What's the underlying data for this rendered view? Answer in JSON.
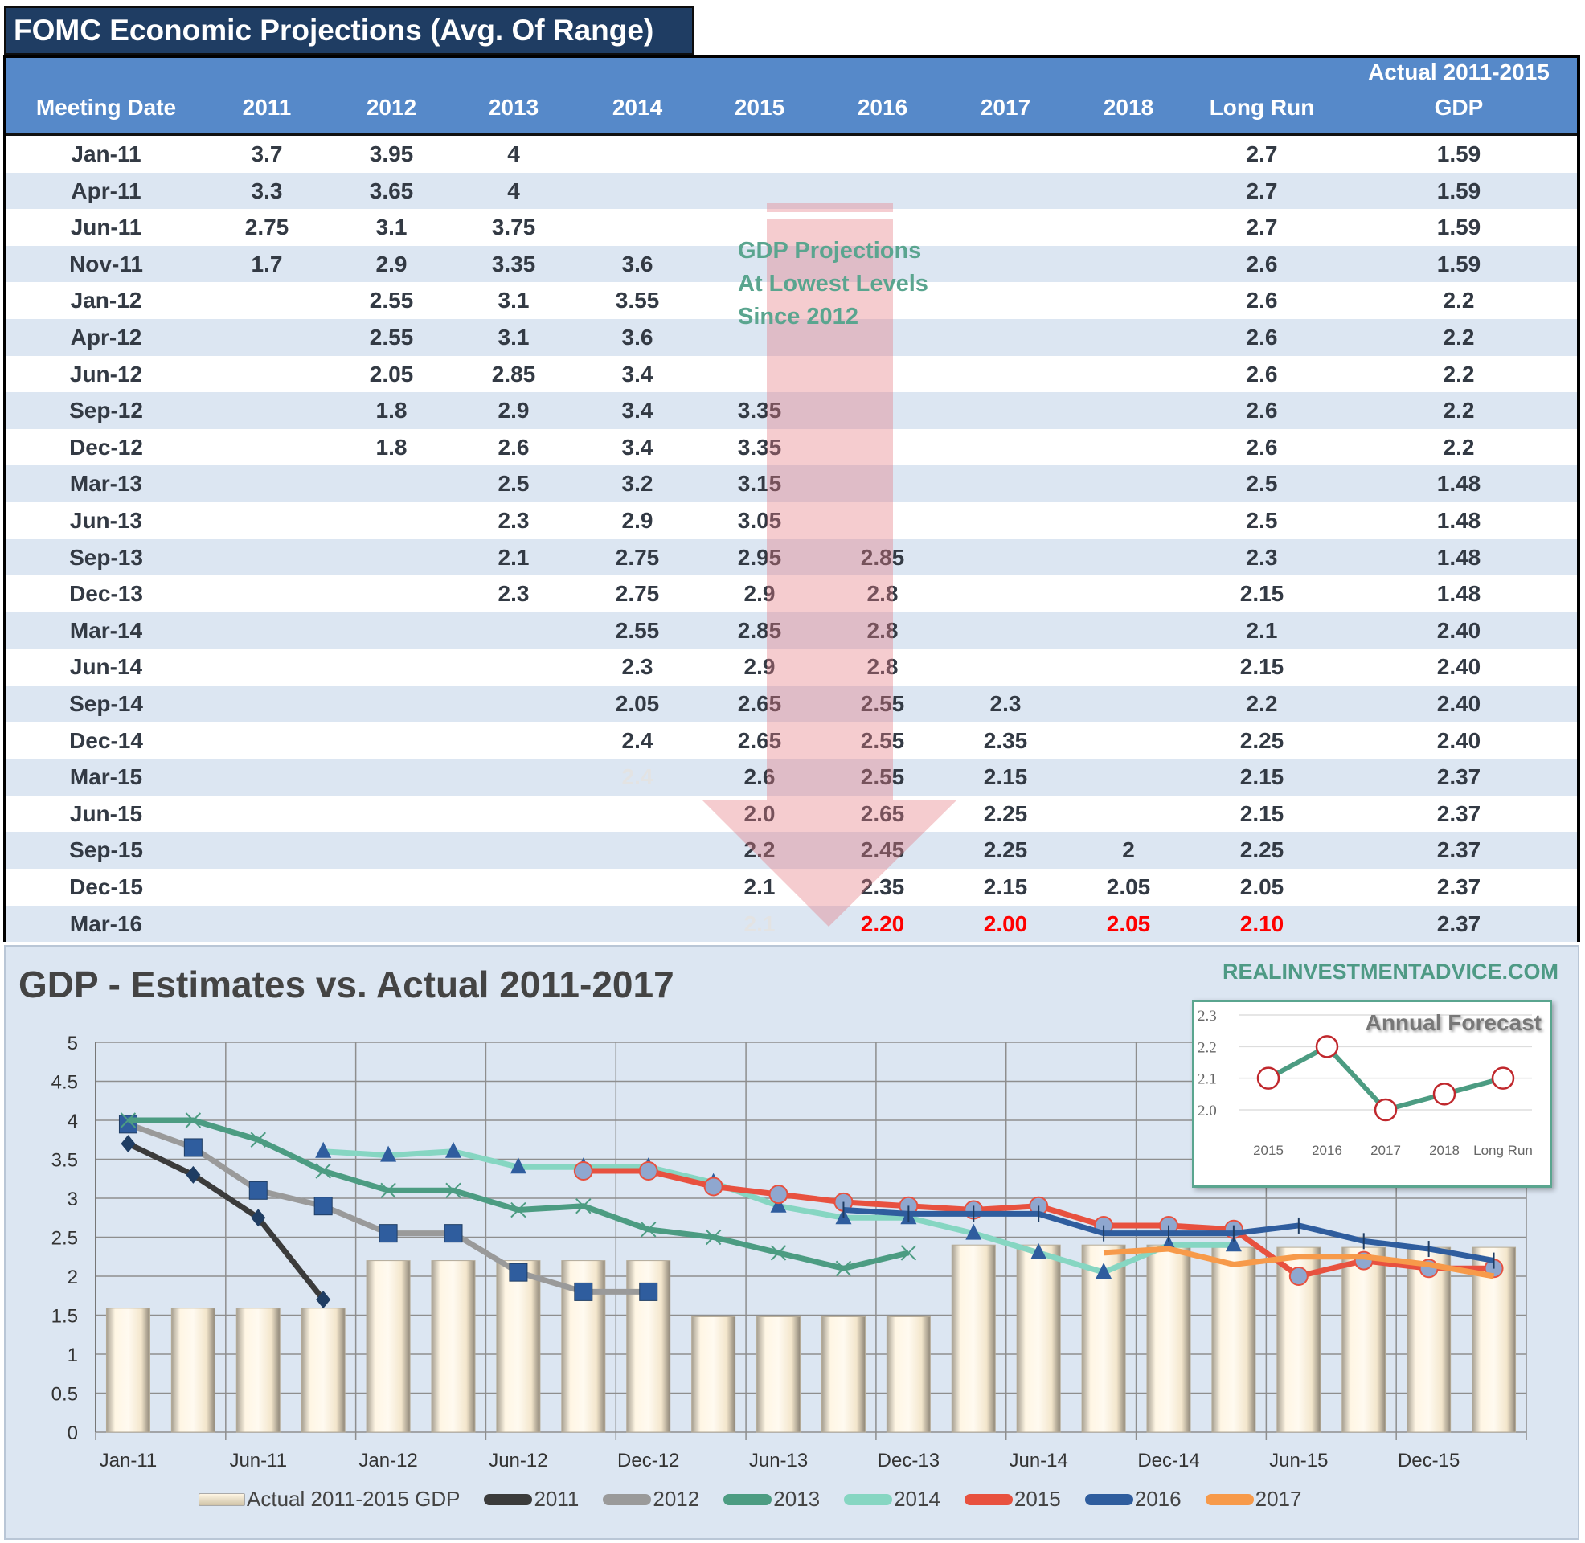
{
  "title": "FOMC Economic Projections (Avg. Of Range)",
  "table": {
    "header_top": "Actual 2011-2015",
    "columns": [
      "Meeting Date",
      "2011",
      "2012",
      "2013",
      "2014",
      "2015",
      "2016",
      "2017",
      "2018",
      "Long Run",
      "GDP"
    ],
    "rows": [
      [
        "Jan-11",
        "3.7",
        "3.95",
        "4",
        "",
        "",
        "",
        "",
        "",
        "2.7",
        "1.59"
      ],
      [
        "Apr-11",
        "3.3",
        "3.65",
        "4",
        "",
        "",
        "",
        "",
        "",
        "2.7",
        "1.59"
      ],
      [
        "Jun-11",
        "2.75",
        "3.1",
        "3.75",
        "",
        "",
        "",
        "",
        "",
        "2.7",
        "1.59"
      ],
      [
        "Nov-11",
        "1.7",
        "2.9",
        "3.35",
        "3.6",
        "",
        "",
        "",
        "",
        "2.6",
        "1.59"
      ],
      [
        "Jan-12",
        "",
        "2.55",
        "3.1",
        "3.55",
        "",
        "",
        "",
        "",
        "2.6",
        "2.2"
      ],
      [
        "Apr-12",
        "",
        "2.55",
        "3.1",
        "3.6",
        "",
        "",
        "",
        "",
        "2.6",
        "2.2"
      ],
      [
        "Jun-12",
        "",
        "2.05",
        "2.85",
        "3.4",
        "",
        "",
        "",
        "",
        "2.6",
        "2.2"
      ],
      [
        "Sep-12",
        "",
        "1.8",
        "2.9",
        "3.4",
        "3.35",
        "",
        "",
        "",
        "2.6",
        "2.2"
      ],
      [
        "Dec-12",
        "",
        "1.8",
        "2.6",
        "3.4",
        "3.35",
        "",
        "",
        "",
        "2.6",
        "2.2"
      ],
      [
        "Mar-13",
        "",
        "",
        "2.5",
        "3.2",
        "3.15",
        "",
        "",
        "",
        "2.5",
        "1.48"
      ],
      [
        "Jun-13",
        "",
        "",
        "2.3",
        "2.9",
        "3.05",
        "",
        "",
        "",
        "2.5",
        "1.48"
      ],
      [
        "Sep-13",
        "",
        "",
        "2.1",
        "2.75",
        "2.95",
        "2.85",
        "",
        "",
        "2.3",
        "1.48"
      ],
      [
        "Dec-13",
        "",
        "",
        "2.3",
        "2.75",
        "2.9",
        "2.8",
        "",
        "",
        "2.15",
        "1.48"
      ],
      [
        "Mar-14",
        "",
        "",
        "",
        "2.55",
        "2.85",
        "2.8",
        "",
        "",
        "2.1",
        "2.40"
      ],
      [
        "Jun-14",
        "",
        "",
        "",
        "2.3",
        "2.9",
        "2.8",
        "",
        "",
        "2.15",
        "2.40"
      ],
      [
        "Sep-14",
        "",
        "",
        "",
        "2.05",
        "2.65",
        "2.55",
        "2.3",
        "",
        "2.2",
        "2.40"
      ],
      [
        "Dec-14",
        "",
        "",
        "",
        "2.4",
        "2.65",
        "2.55",
        "2.35",
        "",
        "2.25",
        "2.40"
      ],
      [
        "Mar-15",
        "",
        "",
        "",
        "2.4",
        "2.6",
        "2.55",
        "2.15",
        "",
        "2.15",
        "2.37"
      ],
      [
        "Jun-15",
        "",
        "",
        "",
        "",
        "2.0",
        "2.65",
        "2.25",
        "",
        "2.15",
        "2.37"
      ],
      [
        "Sep-15",
        "",
        "",
        "",
        "",
        "2.2",
        "2.45",
        "2.25",
        "2",
        "2.25",
        "2.37"
      ],
      [
        "Dec-15",
        "",
        "",
        "",
        "",
        "2.1",
        "2.35",
        "2.15",
        "2.05",
        "2.05",
        "2.37"
      ],
      [
        "Mar-16",
        "",
        "",
        "",
        "",
        "2.1",
        "2.20",
        "2.00",
        "2.05",
        "2.10",
        "2.37"
      ]
    ],
    "faded_cells": [
      [
        17,
        4
      ],
      [
        21,
        5
      ]
    ],
    "red_cells": [
      [
        21,
        6
      ],
      [
        21,
        7
      ],
      [
        21,
        8
      ],
      [
        21,
        9
      ]
    ],
    "annotation": [
      "GDP Projections",
      "At Lowest Levels",
      "Since 2012"
    ]
  },
  "chart_data": [
    {
      "type": "bar+line",
      "title": "GDP - Estimates vs. Actual 2011-2017",
      "source": "REALINVESTMENTADVICE.COM",
      "categories": [
        "Jan-11",
        "Apr-11",
        "Jun-11",
        "Nov-11",
        "Jan-12",
        "Apr-12",
        "Jun-12",
        "Sep-12",
        "Dec-12",
        "Mar-13",
        "Jun-13",
        "Sep-13",
        "Dec-13",
        "Mar-14",
        "Jun-14",
        "Sep-14",
        "Dec-14",
        "Mar-15",
        "Jun-15",
        "Sep-15",
        "Dec-15",
        "Mar-16"
      ],
      "x_tick_labels": [
        "Jan-11",
        "Jun-11",
        "Jan-12",
        "Jun-12",
        "Dec-12",
        "Jun-13",
        "Dec-13",
        "Jun-14",
        "Dec-14",
        "Jun-15",
        "Dec-15"
      ],
      "y_ticks": [
        "0",
        "0.5",
        "1",
        "1.5",
        "2",
        "2.5",
        "3",
        "3.5",
        "4",
        "4.5",
        "5"
      ],
      "ylim": [
        0,
        5
      ],
      "grid": true,
      "legend_position": "bottom",
      "bars": {
        "name": "Actual 2011-2015 GDP",
        "values": [
          1.59,
          1.59,
          1.59,
          1.59,
          2.2,
          2.2,
          2.2,
          2.2,
          2.2,
          1.48,
          1.48,
          1.48,
          1.48,
          2.4,
          2.4,
          2.4,
          2.4,
          2.37,
          2.37,
          2.37,
          2.37,
          2.37
        ]
      },
      "series": [
        {
          "name": "2011",
          "color": "#3b3b3b",
          "marker": "diamond",
          "values": [
            3.7,
            3.3,
            2.75,
            1.7,
            null,
            null,
            null,
            null,
            null,
            null,
            null,
            null,
            null,
            null,
            null,
            null,
            null,
            null,
            null,
            null,
            null,
            null
          ]
        },
        {
          "name": "2012",
          "color": "#9a9a9a",
          "marker": "square",
          "values": [
            3.95,
            3.65,
            3.1,
            2.9,
            2.55,
            2.55,
            2.05,
            1.8,
            1.8,
            null,
            null,
            null,
            null,
            null,
            null,
            null,
            null,
            null,
            null,
            null,
            null,
            null
          ]
        },
        {
          "name": "2013",
          "color": "#4c9c82",
          "marker": "x",
          "values": [
            4,
            4,
            3.75,
            3.35,
            3.1,
            3.1,
            2.85,
            2.9,
            2.6,
            2.5,
            2.3,
            2.1,
            2.3,
            null,
            null,
            null,
            null,
            null,
            null,
            null,
            null,
            null
          ]
        },
        {
          "name": "2014",
          "color": "#86d6c2",
          "marker": "triangle",
          "values": [
            null,
            null,
            null,
            3.6,
            3.55,
            3.6,
            3.4,
            3.4,
            3.4,
            3.2,
            2.9,
            2.75,
            2.75,
            2.55,
            2.3,
            2.05,
            2.4,
            2.4,
            null,
            null,
            null,
            null
          ]
        },
        {
          "name": "2015",
          "color": "#e8513f",
          "marker": "circle",
          "values": [
            null,
            null,
            null,
            null,
            null,
            null,
            null,
            3.35,
            3.35,
            3.15,
            3.05,
            2.95,
            2.9,
            2.85,
            2.9,
            2.65,
            2.65,
            2.6,
            2.0,
            2.2,
            2.1,
            2.1
          ]
        },
        {
          "name": "2016",
          "color": "#2f5d9e",
          "marker": "dash",
          "values": [
            null,
            null,
            null,
            null,
            null,
            null,
            null,
            null,
            null,
            null,
            null,
            2.85,
            2.8,
            2.8,
            2.8,
            2.55,
            2.55,
            2.55,
            2.65,
            2.45,
            2.35,
            2.2
          ]
        },
        {
          "name": "2017",
          "color": "#f79a4a",
          "marker": "none",
          "values": [
            null,
            null,
            null,
            null,
            null,
            null,
            null,
            null,
            null,
            null,
            null,
            null,
            null,
            null,
            null,
            2.3,
            2.35,
            2.15,
            2.25,
            2.25,
            2.15,
            2.0
          ]
        }
      ]
    },
    {
      "type": "line",
      "title": "Annual Forecast",
      "categories": [
        "2015",
        "2016",
        "2017",
        "2018",
        "Long Run"
      ],
      "values": [
        2.1,
        2.2,
        2.0,
        2.05,
        2.1
      ],
      "y_ticks": [
        "2.0",
        "2.1",
        "2.2",
        "2.3"
      ],
      "ylim": [
        2.0,
        2.3
      ],
      "color": "#4c9c82"
    }
  ]
}
